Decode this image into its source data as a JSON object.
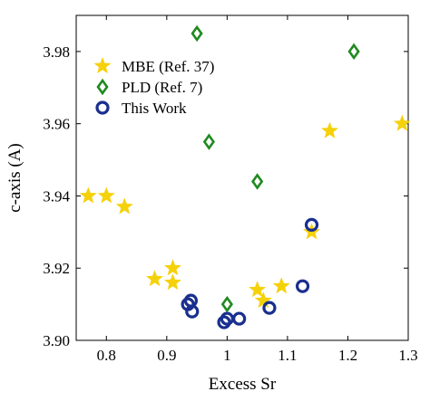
{
  "chart_data": {
    "type": "scatter",
    "xlabel": "Excess Sr",
    "ylabel": "c-axis (A)",
    "xlim": [
      0.75,
      1.3
    ],
    "ylim": [
      3.9,
      3.99
    ],
    "x_ticks": [
      0.8,
      0.9,
      1.0,
      1.1,
      1.2,
      1.3
    ],
    "x_tick_labels": [
      "0.8",
      "0.9",
      "1",
      "1.1",
      "1.2",
      "1.3"
    ],
    "y_ticks": [
      3.9,
      3.92,
      3.94,
      3.96,
      3.98
    ],
    "y_tick_labels": [
      "3.90",
      "3.92",
      "3.94",
      "3.96",
      "3.98"
    ],
    "legend_position": "top-left",
    "grid": false,
    "series": [
      {
        "name": "MBE (Ref. 37)",
        "marker": "star",
        "color": "#f5d10a",
        "points": [
          [
            0.77,
            3.94
          ],
          [
            0.8,
            3.94
          ],
          [
            0.83,
            3.937
          ],
          [
            0.88,
            3.917
          ],
          [
            0.91,
            3.92
          ],
          [
            0.91,
            3.916
          ],
          [
            1.05,
            3.914
          ],
          [
            1.06,
            3.911
          ],
          [
            1.09,
            3.915
          ],
          [
            1.14,
            3.93
          ],
          [
            1.17,
            3.958
          ],
          [
            1.29,
            3.96
          ]
        ]
      },
      {
        "name": "PLD (Ref. 7)",
        "marker": "diamond",
        "color": "#1f8a1f",
        "points": [
          [
            0.95,
            3.985
          ],
          [
            0.97,
            3.955
          ],
          [
            1.05,
            3.944
          ],
          [
            1.0,
            3.91
          ],
          [
            1.21,
            3.98
          ]
        ]
      },
      {
        "name": "This Work",
        "marker": "circle",
        "color": "#1a2f8f",
        "points": [
          [
            0.935,
            3.91
          ],
          [
            0.94,
            3.911
          ],
          [
            0.942,
            3.908
          ],
          [
            0.995,
            3.905
          ],
          [
            1.0,
            3.906
          ],
          [
            1.02,
            3.906
          ],
          [
            1.07,
            3.909
          ],
          [
            1.125,
            3.915
          ],
          [
            1.14,
            3.932
          ]
        ]
      }
    ]
  }
}
